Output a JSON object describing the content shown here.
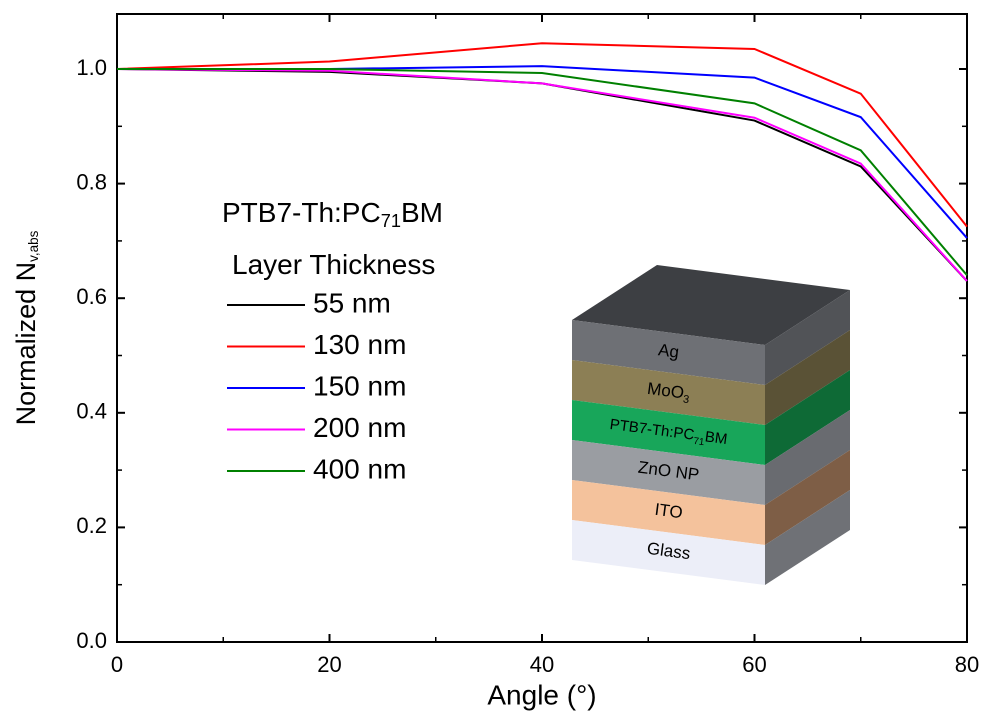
{
  "chart_data": {
    "type": "line",
    "x_label": "Angle (°)",
    "y_label": [
      "Normalized N",
      "v,abs"
    ],
    "x": [
      0,
      20,
      40,
      60,
      70,
      80
    ],
    "series": [
      {
        "name": "55 nm",
        "color": "#000000",
        "values": [
          1.0,
          0.995,
          0.975,
          0.91,
          0.83,
          0.63
        ]
      },
      {
        "name": "130 nm",
        "color": "#ff0000",
        "values": [
          1.0,
          1.013,
          1.045,
          1.035,
          0.957,
          0.725
        ]
      },
      {
        "name": "150 nm",
        "color": "#0000ff",
        "values": [
          1.0,
          1.0,
          1.005,
          0.985,
          0.916,
          0.705
        ]
      },
      {
        "name": "200 nm",
        "color": "#ff00ff",
        "values": [
          1.0,
          0.997,
          0.975,
          0.915,
          0.835,
          0.63
        ]
      },
      {
        "name": "400 nm",
        "color": "#008000",
        "values": [
          1.0,
          1.0,
          0.993,
          0.94,
          0.858,
          0.64
        ]
      }
    ],
    "legend_title": [
      [
        "PTB7-Th:PC",
        "71",
        "BM"
      ],
      [
        "Layer Thickness"
      ]
    ],
    "xlim": [
      0,
      80
    ],
    "xticks": [
      0,
      20,
      40,
      60,
      80
    ],
    "x_minor_ticks": [
      10,
      30,
      50,
      70
    ],
    "ylim": [
      0,
      1.096
    ],
    "yticks": [
      {
        "value": 0,
        "label": "0.0"
      },
      0.2,
      0.4,
      0.6,
      0.8,
      {
        "value": 1,
        "label": "1.0"
      }
    ],
    "y_minor_ticks": [
      0.1,
      0.3,
      0.5,
      0.7,
      0.9
    ],
    "grid": false,
    "inset": {
      "layers": [
        {
          "label": [
            "Ag"
          ],
          "color": "#6e7075",
          "side": "#515357"
        },
        {
          "label": [
            "MoO",
            "3"
          ],
          "color": "#8c7f55",
          "side": "#5a5236"
        },
        {
          "label": [
            "PTB7-Th:PC",
            "71",
            "BM"
          ],
          "color": "#18a65a",
          "side": "#0e6a36"
        },
        {
          "label": [
            "ZnO NP"
          ],
          "color": "#9a9da2",
          "side": "#696b70"
        },
        {
          "label": [
            "ITO"
          ],
          "color": "#f4c29c",
          "side": "#7e5e46"
        },
        {
          "label": [
            "Glass"
          ],
          "color": "#eceef8",
          "side": "#6f7176"
        }
      ],
      "top": "#3d3f43"
    }
  }
}
